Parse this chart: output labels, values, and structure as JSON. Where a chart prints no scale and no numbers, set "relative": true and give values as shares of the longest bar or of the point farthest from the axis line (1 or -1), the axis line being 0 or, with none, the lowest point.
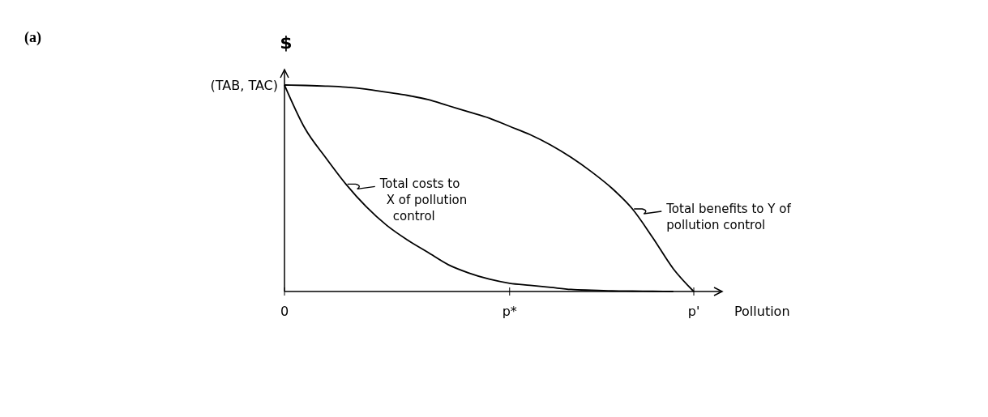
{
  "chart_data": {
    "type": "line",
    "relative": true,
    "ylabel": "$",
    "xlabel": "Pollution",
    "categories": [
      "0",
      null,
      null,
      null,
      null,
      null,
      null,
      null,
      null,
      null,
      null,
      "p*",
      null,
      null,
      null,
      null,
      null,
      null,
      null,
      null,
      "p'"
    ],
    "series": [
      {
        "color": "#000000",
        "values": [
          1,
          0.998,
          0.995,
          0.99,
          0.98,
          0.965,
          0.95,
          0.93,
          0.9,
          0.87,
          0.84,
          0.8,
          0.76,
          0.71,
          0.65,
          0.58,
          0.5,
          0.4,
          0.26,
          0.11,
          0
        ]
      },
      {
        "color": "#000000",
        "values": [
          1,
          0.79,
          0.65,
          0.52,
          0.41,
          0.32,
          0.25,
          0.19,
          0.13,
          0.09,
          0.06,
          0.04,
          0.03,
          0.02,
          0.01,
          0.006,
          0.003,
          0.002,
          0.001,
          0,
          null
        ]
      }
    ],
    "annotations": [
      "(a)",
      "(TAB, TAC)",
      "Total costs to X of pollution control",
      "Total benefits to Y of pollution control"
    ],
    "marker": "none",
    "line_style": "solid",
    "grid": false
  }
}
